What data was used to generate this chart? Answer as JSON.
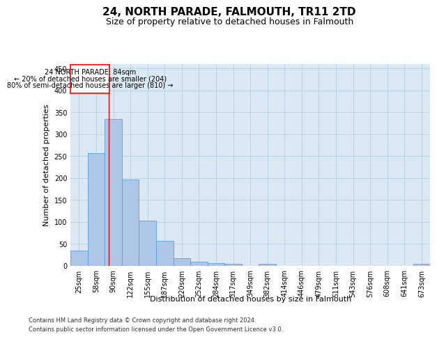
{
  "title": "24, NORTH PARADE, FALMOUTH, TR11 2TD",
  "subtitle": "Size of property relative to detached houses in Falmouth",
  "xlabel": "Distribution of detached houses by size in Falmouth",
  "ylabel": "Number of detached properties",
  "categories": [
    "25sqm",
    "58sqm",
    "90sqm",
    "122sqm",
    "155sqm",
    "187sqm",
    "220sqm",
    "252sqm",
    "284sqm",
    "317sqm",
    "349sqm",
    "382sqm",
    "414sqm",
    "446sqm",
    "479sqm",
    "511sqm",
    "543sqm",
    "576sqm",
    "608sqm",
    "641sqm",
    "673sqm"
  ],
  "values": [
    35,
    257,
    335,
    197,
    103,
    57,
    18,
    10,
    7,
    5,
    0,
    4,
    0,
    0,
    0,
    0,
    0,
    0,
    0,
    0,
    5
  ],
  "bar_color": "#aec6e8",
  "bar_edge_color": "#5a9fd4",
  "background_color": "#ffffff",
  "plot_bg_color": "#dce9f5",
  "grid_color": "#b8cfe0",
  "ylim": [
    0,
    460
  ],
  "yticks": [
    0,
    50,
    100,
    150,
    200,
    250,
    300,
    350,
    400,
    450
  ],
  "red_line_x": 1.73,
  "annotation_text_line1": "24 NORTH PARADE: 84sqm",
  "annotation_text_line2": "← 20% of detached houses are smaller (204)",
  "annotation_text_line3": "80% of semi-detached houses are larger (810) →",
  "footer_line1": "Contains HM Land Registry data © Crown copyright and database right 2024.",
  "footer_line2": "Contains public sector information licensed under the Open Government Licence v3.0.",
  "title_fontsize": 11,
  "subtitle_fontsize": 9,
  "axis_label_fontsize": 8,
  "tick_fontsize": 7,
  "annotation_fontsize": 7,
  "footer_fontsize": 6
}
